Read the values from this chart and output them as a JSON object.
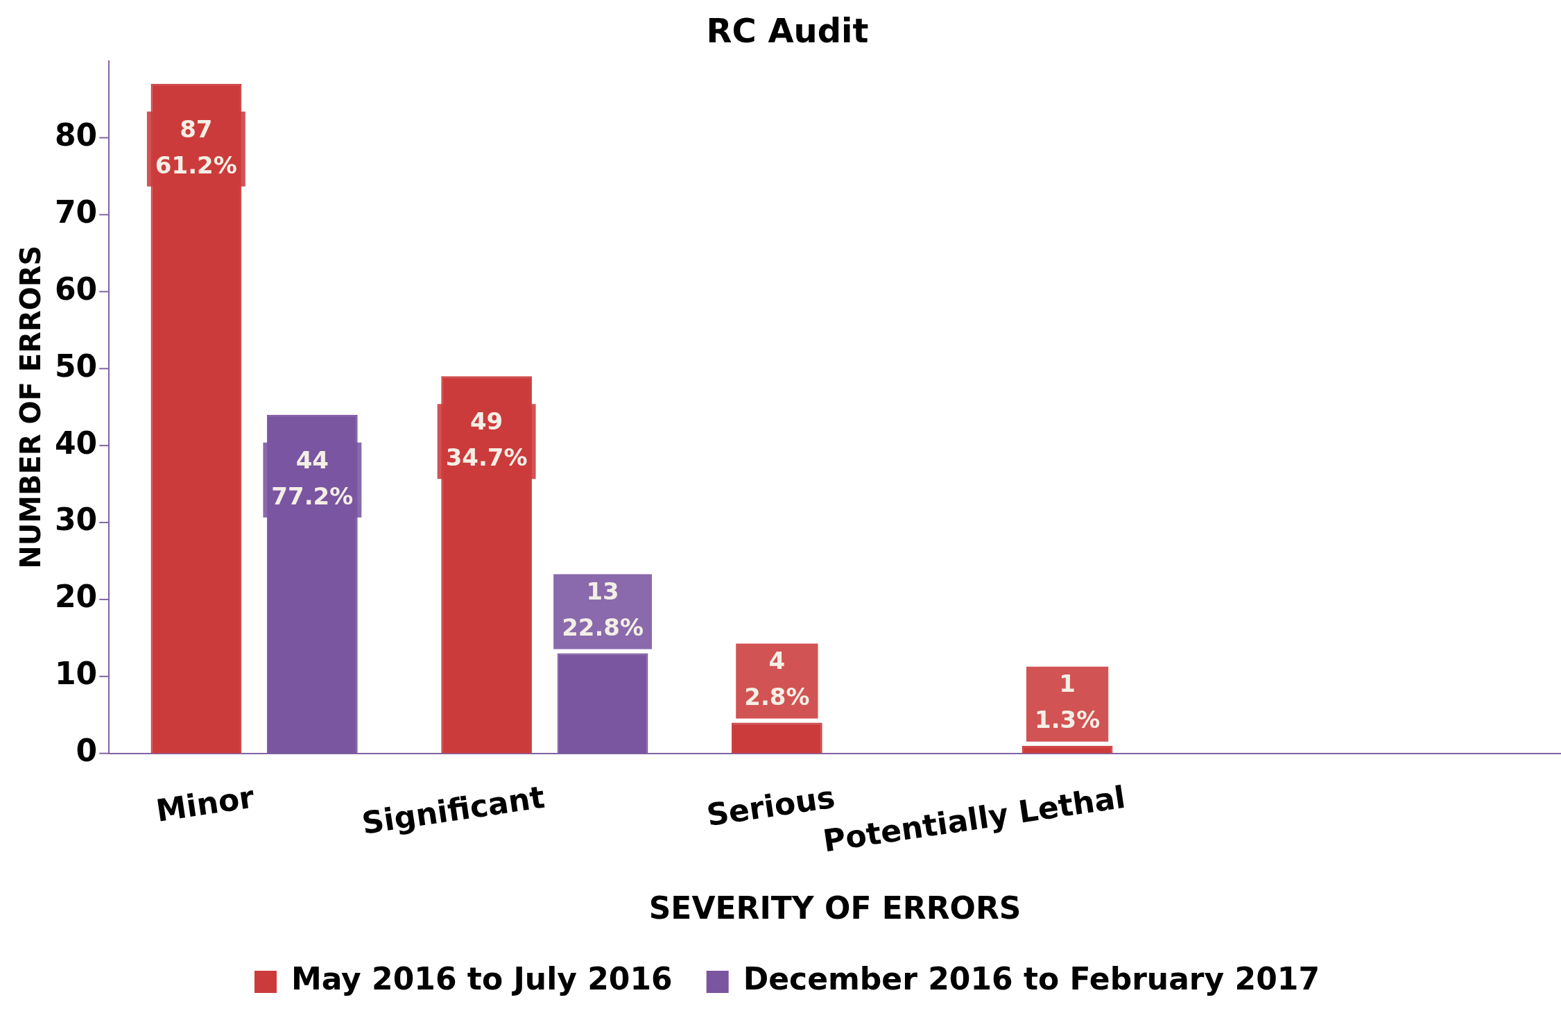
{
  "chart_data": {
    "type": "bar",
    "title": "RC Audit",
    "xlabel": "SEVERITY OF ERRORS",
    "ylabel": "NUMBER OF ERRORS",
    "categories": [
      "Minor",
      "Significant",
      "Serious",
      "Potentially Lethal",
      null
    ],
    "series": [
      {
        "name": "May 2016 to July 2016",
        "color": "#cc3b3b",
        "values": [
          87,
          49,
          4,
          1,
          null
        ],
        "value_labels": [
          "87\n61.2%",
          "49\n34.7%",
          "4\n2.8%",
          "1\n1.3%",
          null
        ]
      },
      {
        "name": "December 2016 to February 2017",
        "color": "#7a55a0",
        "values": [
          44,
          13,
          null,
          null,
          null
        ],
        "value_labels": [
          "44\n77.2%",
          "13\n22.8%",
          null,
          null,
          null
        ]
      }
    ],
    "ylim": [
      0,
      90
    ],
    "yticks": [
      0,
      10,
      20,
      30,
      40,
      50,
      60,
      70,
      80
    ],
    "grid": false,
    "legend": "bottom"
  }
}
